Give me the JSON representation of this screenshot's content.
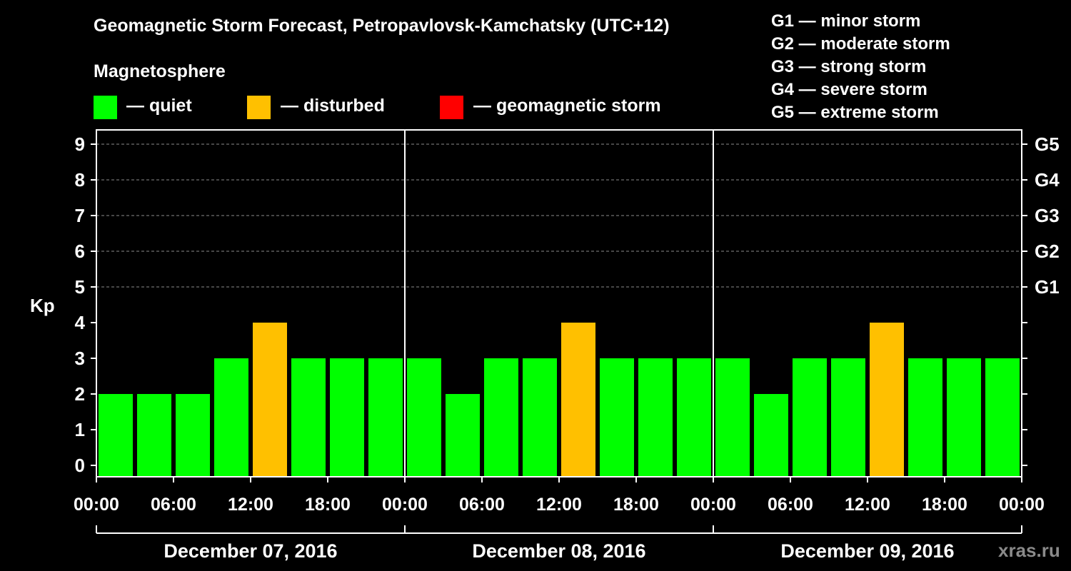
{
  "chart_data": {
    "type": "bar",
    "title": "Geomagnetic Storm Forecast, Petropavlovsk-Kamchatsky (UTC+12)",
    "ylabel": "Kp",
    "ylim": [
      0,
      9
    ],
    "yticks": [
      0,
      1,
      2,
      3,
      4,
      5,
      6,
      7,
      8,
      9
    ],
    "right_axis": [
      {
        "kp": 5,
        "label": "G1"
      },
      {
        "kp": 6,
        "label": "G2"
      },
      {
        "kp": 7,
        "label": "G3"
      },
      {
        "kp": 8,
        "label": "G4"
      },
      {
        "kp": 9,
        "label": "G5"
      }
    ],
    "x_tick_labels": [
      "00:00",
      "06:00",
      "12:00",
      "18:00",
      "00:00",
      "06:00",
      "12:00",
      "18:00",
      "00:00",
      "06:00",
      "12:00",
      "18:00",
      "00:00"
    ],
    "days": [
      "December 07, 2016",
      "December 08, 2016",
      "December 09, 2016"
    ],
    "values": [
      2,
      2,
      2,
      3,
      4,
      3,
      3,
      3,
      3,
      2,
      3,
      3,
      4,
      3,
      3,
      3,
      3,
      2,
      3,
      3,
      4,
      3,
      3,
      3
    ],
    "grid": "dashed horizontal",
    "legend_position": "top"
  },
  "legend": {
    "heading": "Magnetosphere",
    "items": [
      {
        "label": "— quiet",
        "color": "#00ff00"
      },
      {
        "label": "— disturbed",
        "color": "#ffc000"
      },
      {
        "label": "— geomagnetic storm",
        "color": "#ff0000"
      }
    ]
  },
  "storm_scale": [
    "G1 — minor storm",
    "G2 — moderate storm",
    "G3 — strong storm",
    "G4 — severe storm",
    "G5 — extreme storm"
  ],
  "watermark": "xras.ru"
}
